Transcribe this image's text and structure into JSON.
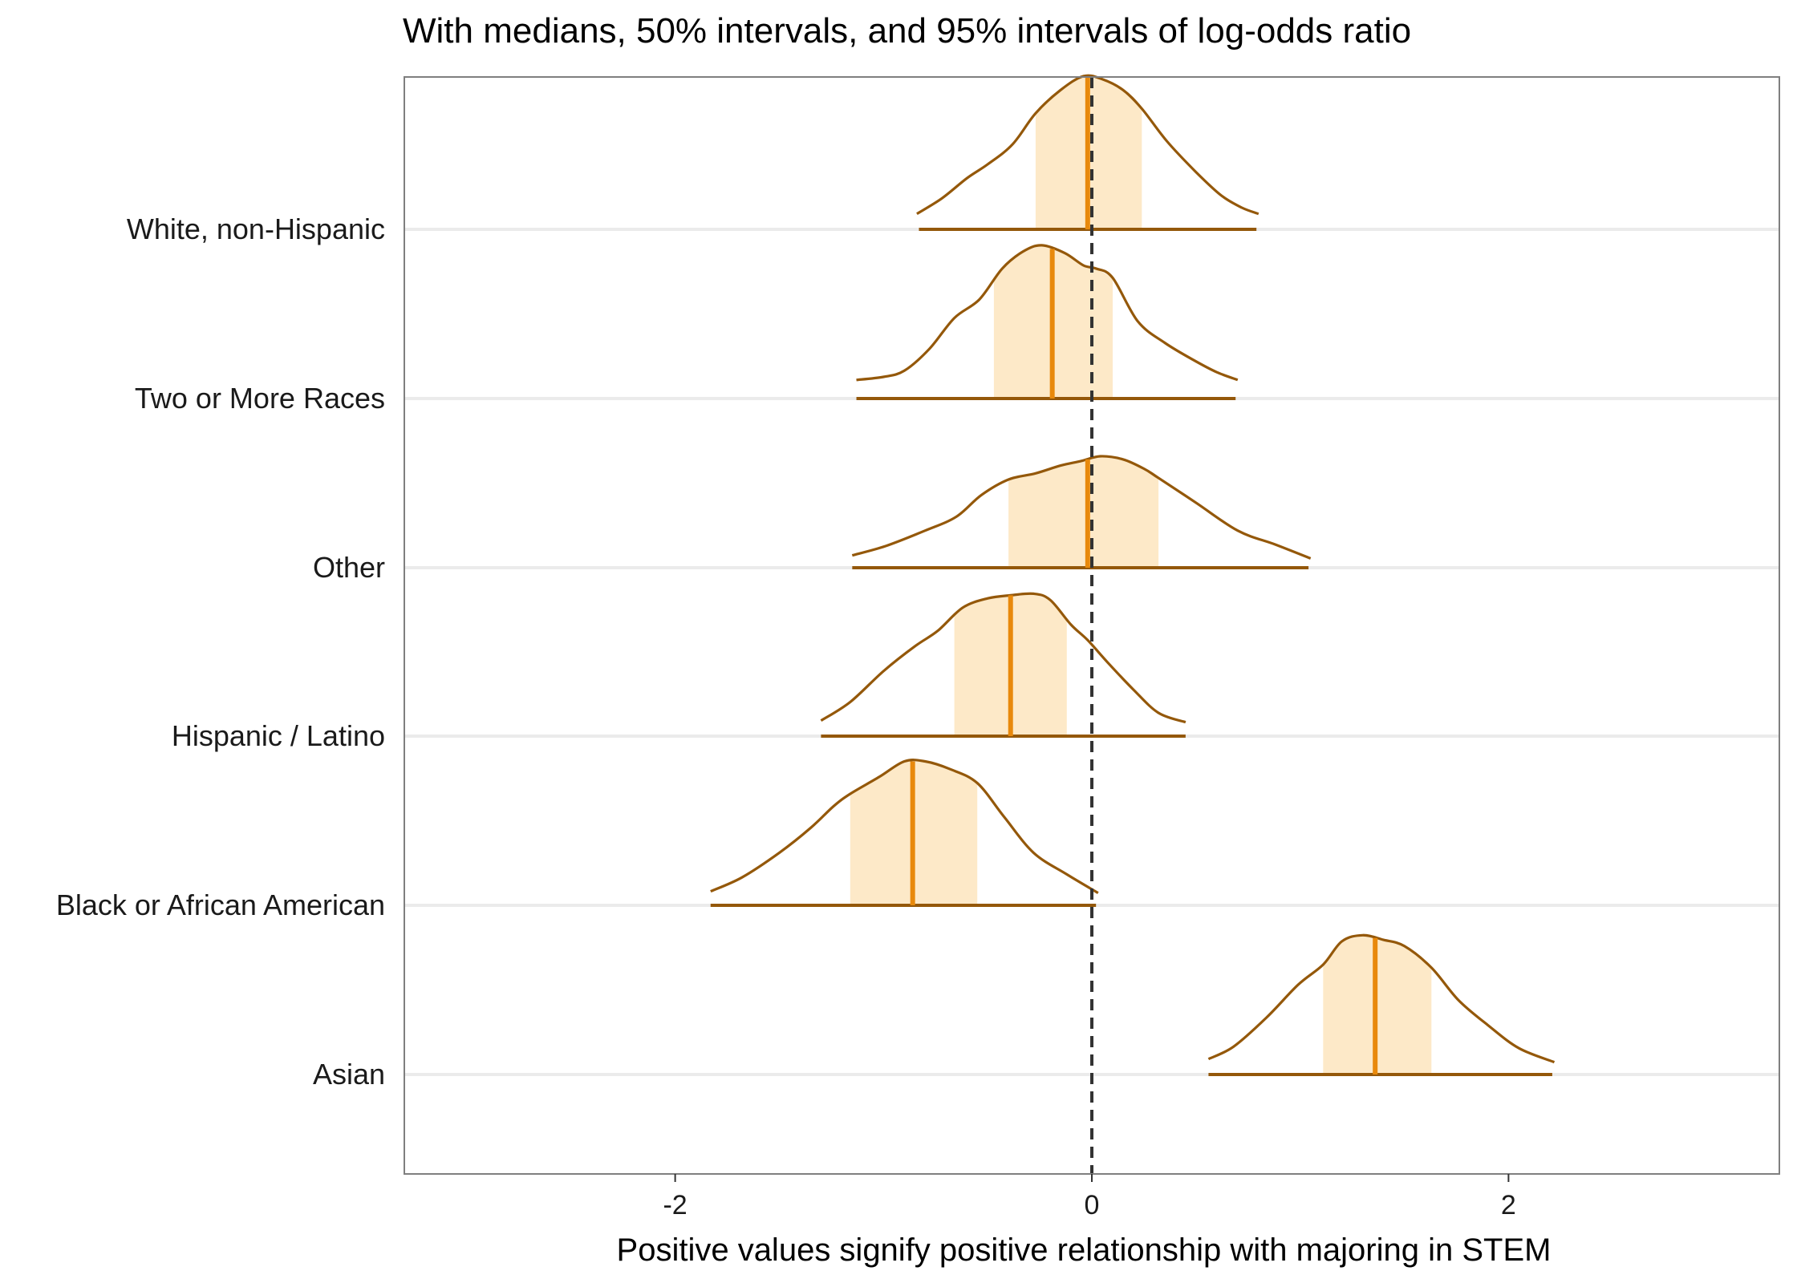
{
  "chart_data": {
    "type": "ridgeline",
    "title": "With medians, 50% intervals, and 95% intervals of log-odds ratio",
    "xlabel": "Positive values signify positive relationship with majoring in STEM",
    "ylabel": "",
    "xlim": [
      -3.3,
      3.3
    ],
    "x_ticks": [
      -2,
      0,
      2
    ],
    "x_tick_labels": [
      "-2",
      "0",
      "2"
    ],
    "reference_line": 0,
    "colors": {
      "outline": "#94580a",
      "median": "#e8890c",
      "interval_fill": "#fde9c8",
      "grid": "#ebebeb",
      "reference": "#333333",
      "panel_border": "#7f7f7f"
    },
    "categories": [
      "White, non-Hispanic",
      "Two or More Races",
      "Other",
      "Hispanic / Latino",
      "Black or African American",
      "Asian"
    ],
    "series": [
      {
        "name": "White, non-Hispanic",
        "median": -0.02,
        "interval_50": [
          -0.27,
          0.24
        ],
        "interval_95": [
          -0.83,
          0.79
        ],
        "density": [
          [
            -0.84,
            0.1
          ],
          [
            -0.72,
            0.2
          ],
          [
            -0.6,
            0.33
          ],
          [
            -0.5,
            0.42
          ],
          [
            -0.38,
            0.55
          ],
          [
            -0.27,
            0.75
          ],
          [
            -0.15,
            0.9
          ],
          [
            -0.04,
            0.99
          ],
          [
            0.05,
            0.97
          ],
          [
            0.15,
            0.9
          ],
          [
            0.24,
            0.78
          ],
          [
            0.36,
            0.57
          ],
          [
            0.5,
            0.37
          ],
          [
            0.62,
            0.22
          ],
          [
            0.72,
            0.14
          ],
          [
            0.8,
            0.1
          ]
        ]
      },
      {
        "name": "Two or More Races",
        "median": -0.19,
        "interval_50": [
          -0.47,
          0.1
        ],
        "interval_95": [
          -1.13,
          0.69
        ],
        "density": [
          [
            -1.13,
            0.12
          ],
          [
            -1.0,
            0.14
          ],
          [
            -0.9,
            0.18
          ],
          [
            -0.78,
            0.32
          ],
          [
            -0.66,
            0.52
          ],
          [
            -0.54,
            0.64
          ],
          [
            -0.43,
            0.84
          ],
          [
            -0.33,
            0.95
          ],
          [
            -0.24,
            0.99
          ],
          [
            -0.13,
            0.94
          ],
          [
            -0.04,
            0.86
          ],
          [
            0.02,
            0.84
          ],
          [
            0.1,
            0.78
          ],
          [
            0.22,
            0.5
          ],
          [
            0.35,
            0.36
          ],
          [
            0.5,
            0.24
          ],
          [
            0.6,
            0.17
          ],
          [
            0.7,
            0.12
          ]
        ]
      },
      {
        "name": "Other",
        "median": -0.02,
        "interval_50": [
          -0.4,
          0.32
        ],
        "interval_95": [
          -1.15,
          1.04
        ],
        "density": [
          [
            -1.15,
            0.08
          ],
          [
            -0.99,
            0.14
          ],
          [
            -0.8,
            0.24
          ],
          [
            -0.65,
            0.33
          ],
          [
            -0.53,
            0.47
          ],
          [
            -0.4,
            0.57
          ],
          [
            -0.27,
            0.61
          ],
          [
            -0.15,
            0.66
          ],
          [
            -0.05,
            0.69
          ],
          [
            0.04,
            0.72
          ],
          [
            0.15,
            0.7
          ],
          [
            0.25,
            0.64
          ],
          [
            0.32,
            0.58
          ],
          [
            0.5,
            0.42
          ],
          [
            0.7,
            0.24
          ],
          [
            0.88,
            0.15
          ],
          [
            1.05,
            0.06
          ]
        ]
      },
      {
        "name": "Hispanic / Latino",
        "median": -0.39,
        "interval_50": [
          -0.66,
          -0.12
        ],
        "interval_95": [
          -1.3,
          0.45
        ],
        "density": [
          [
            -1.3,
            0.1
          ],
          [
            -1.16,
            0.22
          ],
          [
            -1.0,
            0.42
          ],
          [
            -0.85,
            0.58
          ],
          [
            -0.74,
            0.68
          ],
          [
            -0.62,
            0.83
          ],
          [
            -0.5,
            0.89
          ],
          [
            -0.39,
            0.91
          ],
          [
            -0.28,
            0.92
          ],
          [
            -0.2,
            0.88
          ],
          [
            -0.1,
            0.72
          ],
          [
            -0.02,
            0.62
          ],
          [
            0.08,
            0.47
          ],
          [
            0.2,
            0.3
          ],
          [
            0.32,
            0.15
          ],
          [
            0.45,
            0.09
          ]
        ]
      },
      {
        "name": "Black or African American",
        "median": -0.86,
        "interval_50": [
          -1.16,
          -0.55
        ],
        "interval_95": [
          -1.83,
          0.02
        ],
        "density": [
          [
            -1.83,
            0.09
          ],
          [
            -1.68,
            0.18
          ],
          [
            -1.5,
            0.34
          ],
          [
            -1.35,
            0.5
          ],
          [
            -1.24,
            0.64
          ],
          [
            -1.16,
            0.72
          ],
          [
            -1.02,
            0.83
          ],
          [
            -0.9,
            0.93
          ],
          [
            -0.8,
            0.93
          ],
          [
            -0.68,
            0.88
          ],
          [
            -0.55,
            0.79
          ],
          [
            -0.42,
            0.57
          ],
          [
            -0.28,
            0.34
          ],
          [
            -0.12,
            0.2
          ],
          [
            0.03,
            0.08
          ]
        ]
      },
      {
        "name": "Asian",
        "median": 1.36,
        "interval_50": [
          1.11,
          1.63
        ],
        "interval_95": [
          0.56,
          2.21
        ],
        "density": [
          [
            0.56,
            0.1
          ],
          [
            0.68,
            0.18
          ],
          [
            0.84,
            0.37
          ],
          [
            0.99,
            0.58
          ],
          [
            1.11,
            0.71
          ],
          [
            1.2,
            0.86
          ],
          [
            1.3,
            0.9
          ],
          [
            1.4,
            0.87
          ],
          [
            1.5,
            0.83
          ],
          [
            1.63,
            0.69
          ],
          [
            1.76,
            0.48
          ],
          [
            1.9,
            0.32
          ],
          [
            2.05,
            0.17
          ],
          [
            2.22,
            0.08
          ]
        ]
      }
    ]
  }
}
